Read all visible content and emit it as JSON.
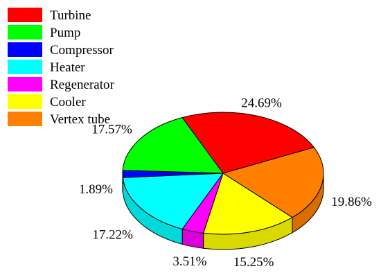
{
  "chart_data": {
    "type": "pie",
    "style": "3d",
    "legend_position": "top-left",
    "slices": [
      {
        "label": "Turbine",
        "value": 24.69,
        "display": "24.69%",
        "color": "#ff0000"
      },
      {
        "label": "Vertex tube",
        "value": 19.86,
        "display": "19.86%",
        "color": "#ff8000"
      },
      {
        "label": "Cooler",
        "value": 15.25,
        "display": "15.25%",
        "color": "#ffff00"
      },
      {
        "label": "Regenerator",
        "value": 3.51,
        "display": "3.51%",
        "color": "#ff00ff"
      },
      {
        "label": "Heater",
        "value": 17.22,
        "display": "17.22%",
        "color": "#00ffff"
      },
      {
        "label": "Compressor",
        "value": 1.89,
        "display": "1.89%",
        "color": "#0000ff"
      },
      {
        "label": "Pump",
        "value": 17.57,
        "display": "17.57%",
        "color": "#00ff00"
      }
    ],
    "legend": [
      {
        "label": "Turbine",
        "color": "#ff0000"
      },
      {
        "label": "Pump",
        "color": "#00ff00"
      },
      {
        "label": "Compressor",
        "color": "#0000ff"
      },
      {
        "label": "Heater",
        "color": "#00ffff"
      },
      {
        "label": "Regenerator",
        "color": "#ff00ff"
      },
      {
        "label": "Cooler",
        "color": "#ffff00"
      },
      {
        "label": "Vertex tube",
        "color": "#ff8000"
      }
    ]
  }
}
